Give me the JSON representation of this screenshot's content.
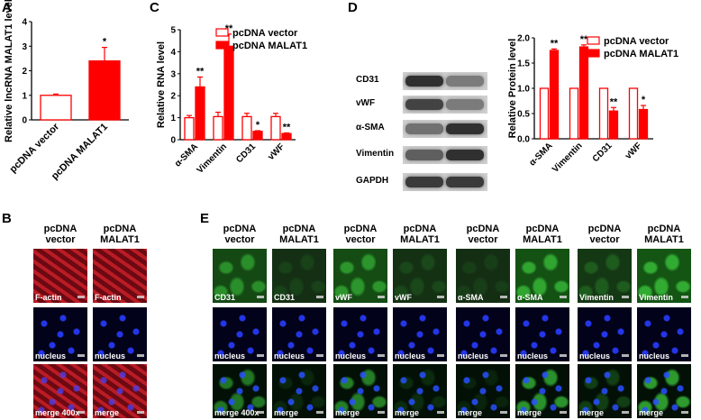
{
  "panels": {
    "A": "A",
    "B": "B",
    "C": "C",
    "D": "D",
    "E": "E"
  },
  "panel_A": {
    "ylabel": "Relative lncRNA MALAT1 level",
    "yticks": [
      "0",
      "1",
      "2",
      "3",
      "4"
    ],
    "categories": [
      "pcDNA vector",
      "pcDNA MALAT1"
    ],
    "sig": "*"
  },
  "panel_C": {
    "ylabel": "Relative RNA level",
    "yticks": [
      "0",
      "1",
      "2",
      "3",
      "4",
      "5"
    ],
    "categories": [
      "α-SMA",
      "Vimentin",
      "CD31",
      "vWF"
    ],
    "legend": [
      "pcDNA vector",
      "pcDNA MALAT1"
    ],
    "sig": [
      "**",
      "**",
      "*",
      "**"
    ]
  },
  "panel_D": {
    "blot_columns": [
      "pcDNA vector",
      "pcDNA MALAT1"
    ],
    "blot_rows": [
      "CD31",
      "vWF",
      "α-SMA",
      "Vimentin",
      "GAPDH"
    ],
    "ylabel": "Relative Protein level",
    "yticks": [
      "0.0",
      "0.5",
      "1.0",
      "1.5",
      "2.0"
    ],
    "categories": [
      "α-SMA",
      "Vimentin",
      "CD31",
      "vWF"
    ],
    "legend": [
      "pcDNA vector",
      "pcDNA MALAT1"
    ],
    "sig": [
      "**",
      "**",
      "**",
      "*"
    ]
  },
  "panel_B": {
    "columns": [
      [
        "pcDNA",
        "vector"
      ],
      [
        "pcDNA",
        "MALAT1"
      ]
    ],
    "captions": [
      [
        "F-actin",
        "F-actin"
      ],
      [
        "nucleus",
        "nucleus"
      ],
      [
        "merge 400x",
        "merge"
      ]
    ]
  },
  "panel_E": {
    "columns": [
      [
        "pcDNA",
        "vector"
      ],
      [
        "pcDNA",
        "MALAT1"
      ],
      [
        "pcDNA",
        "vector"
      ],
      [
        "pcDNA",
        "MALAT1"
      ],
      [
        "pcDNA",
        "vector"
      ],
      [
        "pcDNA",
        "MALAT1"
      ],
      [
        "pcDNA",
        "vector"
      ],
      [
        "pcDNA",
        "MALAT1"
      ]
    ],
    "captions": [
      [
        "CD31",
        "CD31",
        "vWF",
        "vWF",
        "α-SMA",
        "α-SMA",
        "Vimentin",
        "Vimentin"
      ],
      [
        "nucleus",
        "nucleus",
        "nucleus",
        "nucleus",
        "nucleus",
        "nucleus",
        "nucleus",
        "nucleus"
      ],
      [
        "merge 400x",
        "merge",
        "merge",
        "merge",
        "merge",
        "merge",
        "merge",
        "merge"
      ]
    ]
  },
  "colors": {
    "accent": "#ff0000",
    "vector_fill": "#ffffff",
    "malat1_fill": "#ff0000"
  },
  "chart_data": [
    {
      "type": "bar",
      "panel": "A",
      "categories": [
        "pcDNA vector",
        "pcDNA MALAT1"
      ],
      "values": [
        1.0,
        2.4
      ],
      "errors": [
        0.05,
        0.55
      ],
      "ylabel": "Relative lncRNA MALAT1 level",
      "ylim": [
        0,
        4
      ],
      "annotations": [
        "",
        "*"
      ]
    },
    {
      "type": "bar",
      "panel": "C",
      "categories": [
        "α-SMA",
        "Vimentin",
        "CD31",
        "vWF"
      ],
      "series": [
        {
          "name": "pcDNA vector",
          "values": [
            1.0,
            1.05,
            1.05,
            1.05
          ],
          "errors": [
            0.1,
            0.2,
            0.15,
            0.15
          ]
        },
        {
          "name": "pcDNA MALAT1",
          "values": [
            2.4,
            4.25,
            0.38,
            0.28
          ],
          "errors": [
            0.45,
            0.55,
            0.03,
            0.03
          ]
        }
      ],
      "ylabel": "Relative RNA level",
      "ylim": [
        0,
        5
      ],
      "legend": "top-right",
      "annotations": [
        "**",
        "**",
        "*",
        "**"
      ]
    },
    {
      "type": "bar",
      "panel": "D",
      "categories": [
        "α-SMA",
        "Vimentin",
        "CD31",
        "vWF"
      ],
      "series": [
        {
          "name": "pcDNA vector",
          "values": [
            1.0,
            1.0,
            1.0,
            1.0
          ],
          "errors": [
            0,
            0,
            0,
            0
          ]
        },
        {
          "name": "pcDNA MALAT1",
          "values": [
            1.75,
            1.82,
            0.55,
            0.58
          ],
          "errors": [
            0.03,
            0.04,
            0.07,
            0.08
          ]
        }
      ],
      "ylabel": "Relative Protein level",
      "ylim": [
        0,
        2
      ],
      "legend": "top-right",
      "annotations": [
        "**",
        "**",
        "**",
        "*"
      ]
    }
  ]
}
